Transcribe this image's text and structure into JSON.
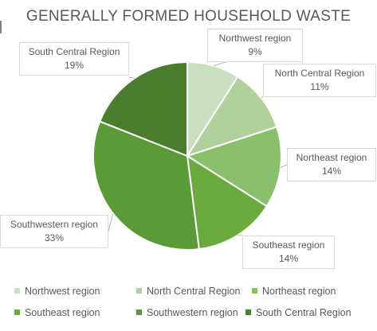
{
  "chart_data": {
    "type": "pie",
    "title": "GENERALLY FORMED HOUSEHOLD WASTE",
    "categories": [
      "Northwest region",
      "North Central Region",
      "Northeast region",
      "Southeast region",
      "Southwestern region",
      "South Central Region"
    ],
    "values": [
      9,
      11,
      14,
      14,
      33,
      19
    ],
    "value_labels": [
      "9%",
      "11%",
      "14%",
      "14%",
      "33%",
      "19%"
    ],
    "colors": [
      "#c9dfc0",
      "#b0d19c",
      "#8abf6c",
      "#6aaa3f",
      "#5a9a37",
      "#4a7d2d"
    ],
    "legend": "bottom",
    "data_labels": "callouts with category name and percentage"
  }
}
